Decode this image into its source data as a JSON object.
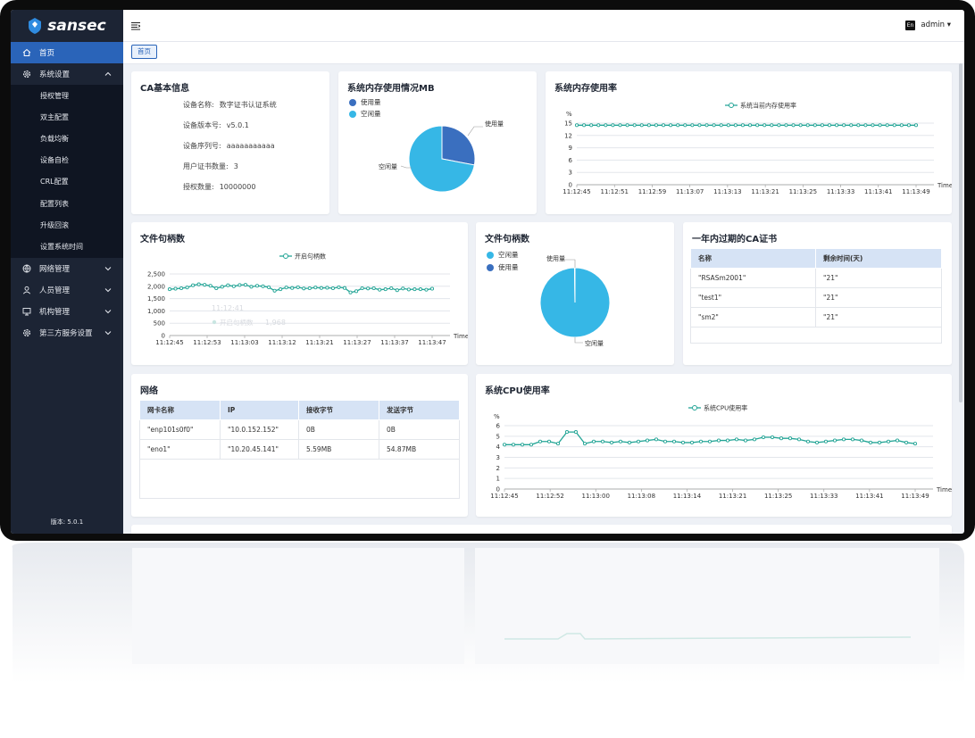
{
  "app": {
    "brand": "sansec",
    "version": "版本: 5.0.1",
    "lang_button": "En",
    "user": "admin"
  },
  "colors": {
    "sidebar": "#1c2434",
    "submenu": "#0f1522",
    "active": "#2a64b9",
    "teal": "#23a596",
    "blue_dark": "#3a6fbf",
    "cyan": "#36b7e6"
  },
  "sidebar": {
    "items": [
      {
        "label": "首页",
        "icon": "home-icon",
        "active": true
      },
      {
        "label": "系统设置",
        "icon": "gear-icon",
        "expanded": true
      }
    ],
    "sub_items": [
      "授权管理",
      "双主配置",
      "负载均衡",
      "设备自检",
      "CRL配置",
      "配置列表",
      "升级回滚",
      "设置系统时间"
    ],
    "groups": [
      {
        "label": "网络管理",
        "icon": "globe-icon"
      },
      {
        "label": "人员管理",
        "icon": "user-icon"
      },
      {
        "label": "机构管理",
        "icon": "monitor-icon"
      },
      {
        "label": "第三方服务设置",
        "icon": "gear-icon"
      }
    ]
  },
  "tabs": [
    "首页"
  ],
  "ca_info": {
    "title": "CA基本信息",
    "rows": [
      {
        "label": "设备名称:",
        "value": "数字证书认证系统"
      },
      {
        "label": "设备版本号:",
        "value": "v5.0.1"
      },
      {
        "label": "设备序列号:",
        "value": "aaaaaaaaaaa"
      },
      {
        "label": "用户证书数量:",
        "value": "3"
      },
      {
        "label": "授权数量:",
        "value": "10000000"
      }
    ]
  },
  "mem_pie": {
    "title": "系统内存使用情况MB",
    "legend": [
      "使用量",
      "空闲量"
    ],
    "label_used": "使用量",
    "label_free": "空闲量"
  },
  "file_pie": {
    "title": "文件句柄数",
    "legend": [
      "空闲量",
      "使用量"
    ],
    "label_used": "使用量",
    "label_free": "空闲量"
  },
  "expiring": {
    "title": "一年内过期的CA证书",
    "headers": [
      "名称",
      "剩余时间(天)"
    ],
    "rows": [
      [
        "\"RSASm2001\"",
        "\"21\""
      ],
      [
        "\"test1\"",
        "\"21\""
      ],
      [
        "\"sm2\"",
        "\"21\""
      ]
    ]
  },
  "network": {
    "title": "网络",
    "headers": [
      "网卡名称",
      "IP",
      "接收字节",
      "发送字节"
    ],
    "rows": [
      [
        "\"enp101s0f0\"",
        "\"10.0.152.152\"",
        "0B",
        "0B"
      ],
      [
        "\"eno1\"",
        "\"10.20.45.141\"",
        "5.59MB",
        "54.87MB"
      ]
    ]
  },
  "chart_data": [
    {
      "type": "pie",
      "title": "系统内存使用情况MB",
      "labels": [
        "使用量",
        "空闲量"
      ],
      "values": [
        28,
        72
      ]
    },
    {
      "type": "line",
      "title": "系统内存使用率",
      "series": [
        {
          "name": "系统当前内存使用率",
          "values": [
            14.5,
            14.5,
            14.5,
            14.5,
            14.5,
            14.5,
            14.5,
            14.5,
            14.5,
            14.5,
            14.5,
            14.5,
            14.5,
            14.5,
            14.5,
            14.5,
            14.5,
            14.5,
            14.5,
            14.5,
            14.5,
            14.5,
            14.5,
            14.5,
            14.5,
            14.5,
            14.5,
            14.5,
            14.5,
            14.5,
            14.5,
            14.5,
            14.5,
            14.5,
            14.5,
            14.5,
            14.5,
            14.5,
            14.5,
            14.5,
            14.5,
            14.5,
            14.5,
            14.5,
            14.5,
            14.5,
            14.5,
            14.5
          ]
        }
      ],
      "ylabel": "%",
      "xlabel": "Time",
      "ylim": [
        0,
        15
      ],
      "yticks": [
        0,
        3,
        6,
        9,
        12,
        15
      ],
      "xticks": [
        "11:12:45",
        "11:12:51",
        "11:12:59",
        "11:13:07",
        "11:13:13",
        "11:13:21",
        "11:13:25",
        "11:13:33",
        "11:13:41",
        "11:13:49"
      ]
    },
    {
      "type": "line",
      "title": "文件句柄数",
      "series": [
        {
          "name": "开启句柄数",
          "values": [
            1880,
            1900,
            1920,
            1950,
            2040,
            2080,
            2060,
            2020,
            1920,
            1980,
            2040,
            2000,
            2050,
            2060,
            1980,
            2020,
            2000,
            1960,
            1820,
            1880,
            1950,
            1930,
            1960,
            1910,
            1920,
            1950,
            1930,
            1940,
            1920,
            1960,
            1930,
            1750,
            1800,
            1920,
            1910,
            1920,
            1860,
            1880,
            1920,
            1840,
            1910,
            1870,
            1880,
            1880,
            1860,
            1900
          ]
        }
      ],
      "ylim": [
        0,
        2500
      ],
      "yticks": [
        "0",
        "500",
        "1,000",
        "1,500",
        "2,000",
        "2,500"
      ],
      "xlabel": "Time",
      "xticks": [
        "11:12:45",
        "11:12:53",
        "11:13:03",
        "11:13:12",
        "11:13:21",
        "11:13:27",
        "11:13:37",
        "11:13:47"
      ],
      "tooltip": {
        "time": "11:12:41",
        "label": "开启句柄数",
        "value": "1,968"
      }
    },
    {
      "type": "pie",
      "title": "文件句柄数",
      "labels": [
        "空闲量",
        "使用量"
      ],
      "values": [
        99.8,
        0.2
      ]
    },
    {
      "type": "line",
      "title": "系统CPU使用率",
      "series": [
        {
          "name": "系统CPU使用率",
          "values": [
            4.2,
            4.2,
            4.2,
            4.2,
            4.5,
            4.5,
            4.3,
            5.4,
            5.4,
            4.3,
            4.5,
            4.5,
            4.4,
            4.5,
            4.4,
            4.5,
            4.6,
            4.7,
            4.5,
            4.5,
            4.4,
            4.4,
            4.5,
            4.5,
            4.6,
            4.6,
            4.7,
            4.6,
            4.7,
            4.9,
            4.9,
            4.8,
            4.8,
            4.7,
            4.5,
            4.4,
            4.5,
            4.6,
            4.7,
            4.7,
            4.6,
            4.4,
            4.4,
            4.5,
            4.6,
            4.4,
            4.3
          ]
        }
      ],
      "ylabel": "%",
      "xlabel": "Time",
      "ylim": [
        0,
        6
      ],
      "yticks": [
        0,
        1,
        2,
        3,
        4,
        5,
        6
      ],
      "xticks": [
        "11:12:45",
        "11:12:52",
        "11:13:00",
        "11:13:08",
        "11:13:14",
        "11:13:21",
        "11:13:25",
        "11:13:33",
        "11:13:41",
        "11:13:49"
      ]
    }
  ]
}
